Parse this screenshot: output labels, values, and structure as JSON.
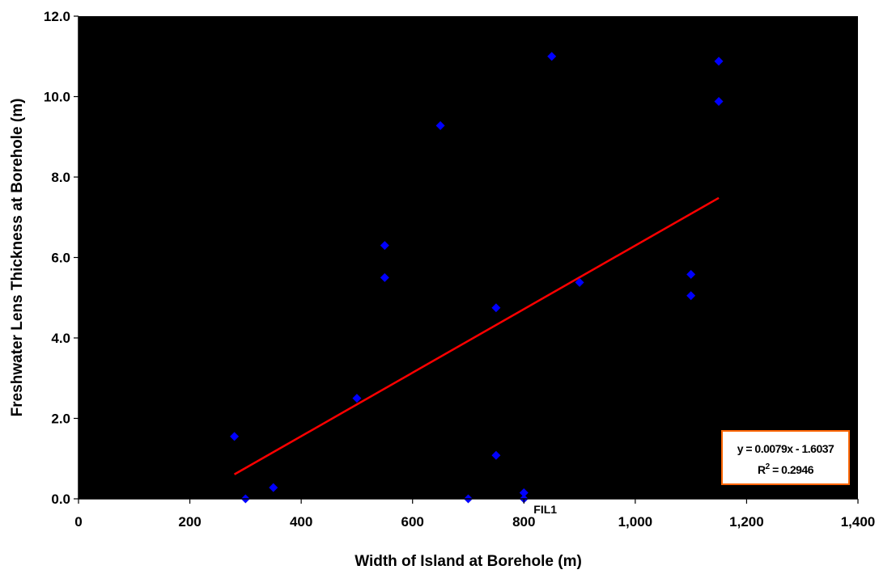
{
  "chart_data": {
    "type": "scatter",
    "title": "",
    "xlabel": "Width of Island at Borehole (m)",
    "ylabel": "Freshwater Lens Thickness at Borehole (m)",
    "xlim": [
      0,
      1400
    ],
    "ylim": [
      0,
      12
    ],
    "x_ticks": [
      0,
      200,
      400,
      600,
      800,
      1000,
      1200,
      1400
    ],
    "x_tick_labels": [
      "0",
      "200",
      "400",
      "600",
      "800",
      "1,000",
      "1,200",
      "1,400"
    ],
    "y_ticks": [
      0,
      2,
      4,
      6,
      8,
      10,
      12
    ],
    "y_tick_labels": [
      "0.0",
      "2.0",
      "4.0",
      "6.0",
      "8.0",
      "10.0",
      "12.0"
    ],
    "grid": false,
    "plot_background": "#000000",
    "point_color": "#0000ff",
    "trendline_color": "#ff0000",
    "points": [
      {
        "x": 280,
        "y": 1.55
      },
      {
        "x": 300,
        "y": 0.0
      },
      {
        "x": 350,
        "y": 0.28
      },
      {
        "x": 500,
        "y": 2.5
      },
      {
        "x": 550,
        "y": 6.3
      },
      {
        "x": 550,
        "y": 5.5
      },
      {
        "x": 650,
        "y": 9.28
      },
      {
        "x": 700,
        "y": 0.0
      },
      {
        "x": 750,
        "y": 4.75
      },
      {
        "x": 750,
        "y": 1.08
      },
      {
        "x": 800,
        "y": 0.15
      },
      {
        "x": 800,
        "y": 0.0
      },
      {
        "x": 850,
        "y": 11.0
      },
      {
        "x": 900,
        "y": 5.38
      },
      {
        "x": 1100,
        "y": 5.58
      },
      {
        "x": 1100,
        "y": 5.05
      },
      {
        "x": 1150,
        "y": 10.88
      },
      {
        "x": 1150,
        "y": 9.88
      }
    ],
    "annotations": [
      {
        "text": "FIL1",
        "x": 800,
        "y": 0.0
      }
    ],
    "trendline": {
      "slope": 0.0079,
      "intercept": -1.6037,
      "x_range": [
        280,
        1150
      ],
      "equation": "y = 0.0079x - 1.6037",
      "r2_prefix": "R",
      "r2_sup": "2",
      "r2_value": " = 0.2946",
      "box_fill": "#ffffff",
      "box_border": "#ff6600"
    }
  }
}
